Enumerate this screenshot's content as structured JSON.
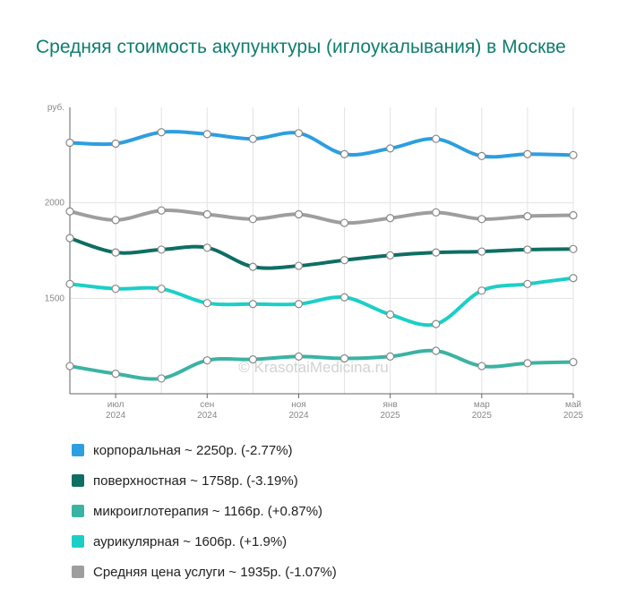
{
  "title": "Средняя стоимость акупунктуры (иглоукалывания) в Москве",
  "watermark": "© KrasotaiMedicina.ru",
  "chart_data": {
    "type": "line",
    "y_unit": "руб.",
    "ylim": [
      1000,
      2500
    ],
    "yticks": [
      1500,
      2000
    ],
    "x_ticks": [
      {
        "idx": 1,
        "month": "июл",
        "year": "2024"
      },
      {
        "idx": 3,
        "month": "сен",
        "year": "2024"
      },
      {
        "idx": 5,
        "month": "ноя",
        "year": "2024"
      },
      {
        "idx": 7,
        "month": "янв",
        "year": "2025"
      },
      {
        "idx": 9,
        "month": "мар",
        "year": "2025"
      },
      {
        "idx": 11,
        "month": "май",
        "year": "2025"
      }
    ],
    "n_points": 12,
    "grid": true,
    "series": [
      {
        "key": "korporalnaya",
        "color": "#2d9ee0",
        "values": [
          2315,
          2310,
          2370,
          2360,
          2335,
          2365,
          2255,
          2285,
          2335,
          2245,
          2255,
          2250
        ]
      },
      {
        "key": "average",
        "color": "#9e9e9e",
        "values": [
          1955,
          1910,
          1960,
          1940,
          1915,
          1940,
          1895,
          1920,
          1950,
          1915,
          1930,
          1935
        ]
      },
      {
        "key": "poverhnostnaya",
        "color": "#0e6e64",
        "values": [
          1815,
          1740,
          1755,
          1765,
          1665,
          1670,
          1700,
          1725,
          1740,
          1745,
          1755,
          1758
        ]
      },
      {
        "key": "aurikulyarnaya",
        "color": "#1ccfc6",
        "values": [
          1575,
          1550,
          1550,
          1475,
          1470,
          1470,
          1505,
          1415,
          1365,
          1540,
          1575,
          1606
        ]
      },
      {
        "key": "mikroiglo",
        "color": "#3bb3a3",
        "values": [
          1145,
          1105,
          1080,
          1175,
          1180,
          1195,
          1185,
          1195,
          1225,
          1145,
          1160,
          1166
        ]
      }
    ]
  },
  "legend": [
    {
      "label": "корпоральная ~ 2250р. (-2.77%)",
      "color": "#2d9ee0"
    },
    {
      "label": "поверхностная ~ 1758р. (-3.19%)",
      "color": "#0e6e64"
    },
    {
      "label": "микроиглотерапия ~ 1166р. (+0.87%)",
      "color": "#3bb3a3"
    },
    {
      "label": "аурикулярная ~ 1606р. (+1.9%)",
      "color": "#1ccfc6"
    },
    {
      "label": "Средняя цена услуги ~ 1935р. (-1.07%)",
      "color": "#9e9e9e"
    }
  ]
}
